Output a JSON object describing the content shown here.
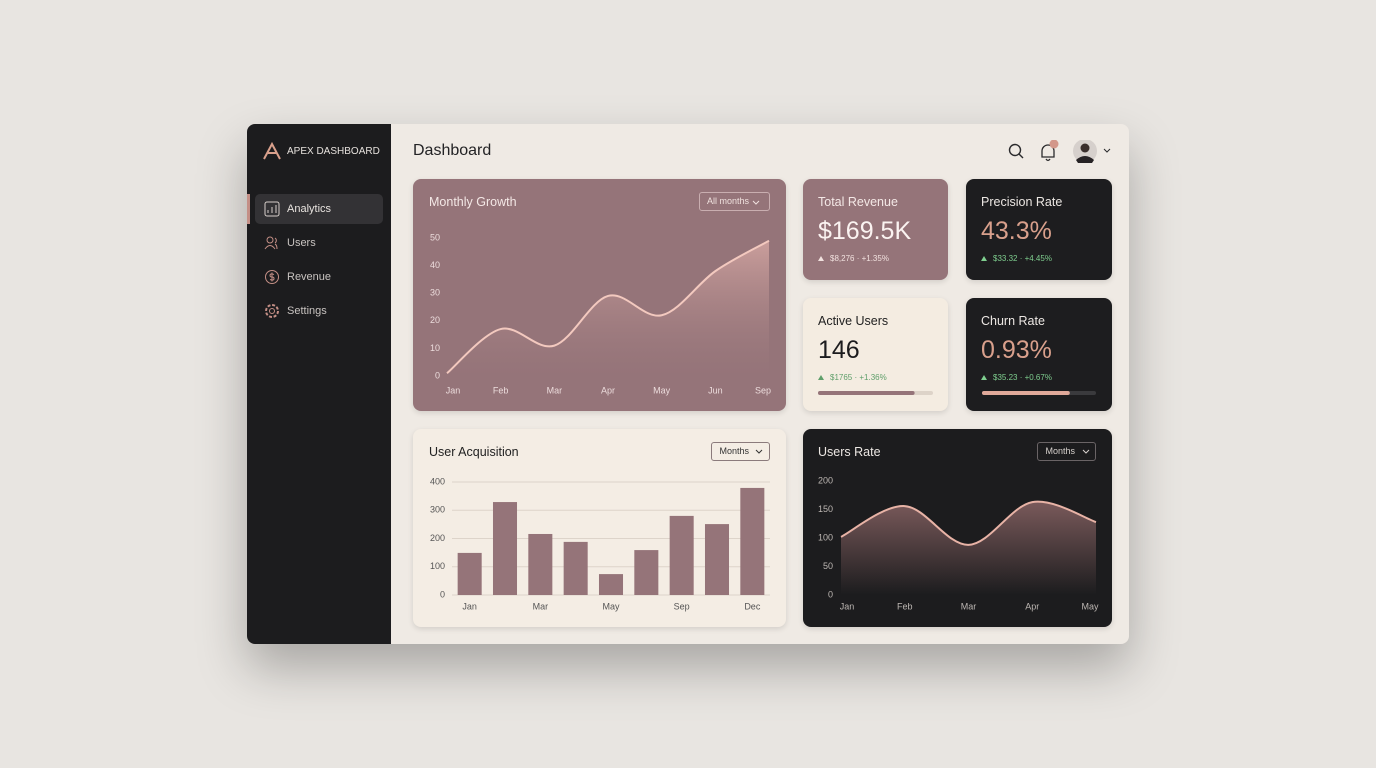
{
  "sidebar": {
    "brand": "APEX DASHBOARD",
    "nav": [
      "Analytics",
      "Users",
      "Revenue",
      "Settings"
    ]
  },
  "header": {
    "title": "Dashboard"
  },
  "kpis": [
    {
      "title": "Total Revenue",
      "value": "$169.5K",
      "change": "$8,276 · +1.35%"
    },
    {
      "title": "Precision Rate",
      "value": "43.3%",
      "change": "$33.32 · +4.45%"
    },
    {
      "title": "Active Users",
      "value": "146",
      "change": "$1765 · +1.36%",
      "progress": 0.84
    },
    {
      "title": "Churn Rate",
      "value": "0.93%",
      "change": "$35.23 · +0.67%",
      "progress": 0.77
    }
  ],
  "chart_data": [
    {
      "type": "area",
      "title": "Monthly Growth",
      "filter": "All months",
      "categories": [
        "Jan",
        "Feb",
        "Mar",
        "Apr",
        "May",
        "Jun",
        "Sep"
      ],
      "values": [
        1,
        17,
        11,
        29,
        22,
        38,
        49
      ],
      "ylim": [
        0,
        50
      ],
      "yticks": [
        0,
        10,
        20,
        30,
        40,
        50
      ],
      "grid": false,
      "color": "#f3c9bf"
    },
    {
      "type": "bar",
      "title": "User Acquisition",
      "filter": "Months",
      "categories": [
        "Jan",
        null,
        "Mar",
        null,
        "May",
        null,
        "Sep",
        null,
        "Dec"
      ],
      "values": [
        149,
        329,
        216,
        188,
        74,
        159,
        280,
        251,
        379
      ],
      "ylim": [
        0,
        400
      ],
      "yticks": [
        0,
        100,
        200,
        300,
        400
      ],
      "grid": true,
      "color": "#957479"
    },
    {
      "type": "area",
      "title": "Users Rate",
      "filter": "Months",
      "categories": [
        "Jan",
        "Feb",
        "Mar",
        "Apr",
        "May"
      ],
      "values": [
        102,
        156,
        88,
        163,
        128
      ],
      "ylim": [
        0,
        200
      ],
      "yticks": [
        0,
        50,
        100,
        150,
        200
      ],
      "grid": false,
      "color": "#e8b3a6"
    }
  ]
}
